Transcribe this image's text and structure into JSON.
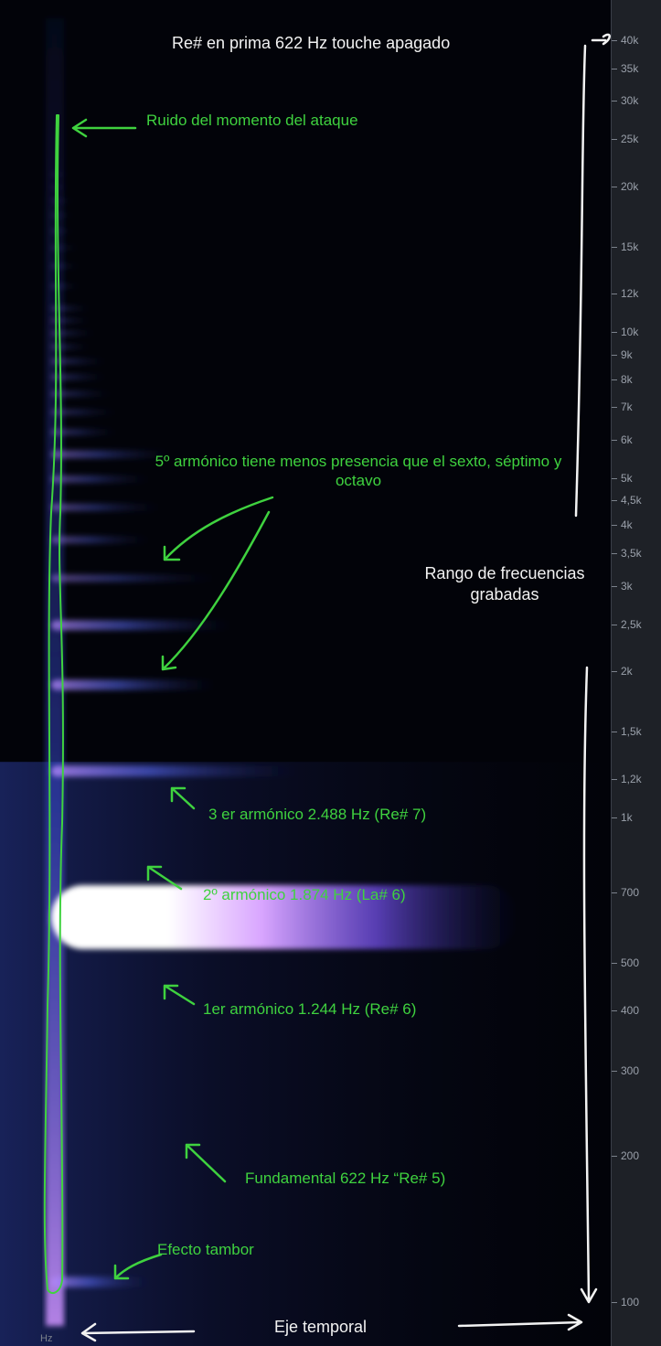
{
  "chart_data": {
    "type": "spectrogram",
    "title": "Re# en prima 622 Hz touche apagado",
    "xlabel": "Eje temporal",
    "ylabel": "",
    "yscale": "log",
    "yunit": "Hz",
    "ylim": [
      70,
      45000
    ],
    "yticks": [
      "100",
      "200",
      "300",
      "400",
      "500",
      "700",
      "1k",
      "1,2k",
      "1,5k",
      "2k",
      "2,5k",
      "3k",
      "3,5k",
      "4k",
      "4,5k",
      "5k",
      "6k",
      "7k",
      "8k",
      "9k",
      "10k",
      "12k",
      "15k",
      "20k",
      "25k",
      "30k",
      "35k",
      "40k"
    ],
    "colors": {
      "annotation": "#3fd23f",
      "text": "#f2f2f2",
      "background": "#020309"
    },
    "annotations": [
      "Ruido del momento del ataque",
      "5º armónico tiene menos presencia que el sexto, séptimo y octavo",
      "3 er armónico 2.488 Hz (Re# 7)",
      "2º armónico 1.874 Hz (La# 6)",
      "1er armónico 1.244 Hz (Re# 6)",
      "Fundamental 622 Hz “Re# 5)",
      "Efecto tambor",
      "Rango de frecuencias grabadas"
    ],
    "partials": [
      {
        "freq": 110,
        "strength": 0.75,
        "decay": 0.18
      },
      {
        "freq": 622,
        "strength": 1.0,
        "decay": 0.85
      },
      {
        "freq": 1244,
        "strength": 0.8,
        "decay": 0.45
      },
      {
        "freq": 1874,
        "strength": 0.75,
        "decay": 0.3
      },
      {
        "freq": 2488,
        "strength": 0.7,
        "decay": 0.33
      },
      {
        "freq": 3110,
        "strength": 0.45,
        "decay": 0.3
      },
      {
        "freq": 3732,
        "strength": 0.45,
        "decay": 0.18
      },
      {
        "freq": 4354,
        "strength": 0.45,
        "decay": 0.2
      },
      {
        "freq": 4976,
        "strength": 0.45,
        "decay": 0.18
      },
      {
        "freq": 5598,
        "strength": 0.5,
        "decay": 0.22
      },
      {
        "freq": 6220,
        "strength": 0.35,
        "decay": 0.12
      },
      {
        "freq": 6842,
        "strength": 0.3,
        "decay": 0.12
      },
      {
        "freq": 7464,
        "strength": 0.3,
        "decay": 0.11
      },
      {
        "freq": 8086,
        "strength": 0.3,
        "decay": 0.1
      },
      {
        "freq": 8708,
        "strength": 0.3,
        "decay": 0.1
      },
      {
        "freq": 9330,
        "strength": 0.25,
        "decay": 0.07
      },
      {
        "freq": 9952,
        "strength": 0.25,
        "decay": 0.08
      },
      {
        "freq": 10574,
        "strength": 0.25,
        "decay": 0.07
      },
      {
        "freq": 11196,
        "strength": 0.25,
        "decay": 0.07
      },
      {
        "freq": 12440,
        "strength": 0.2,
        "decay": 0.05
      },
      {
        "freq": 13684,
        "strength": 0.18,
        "decay": 0.05
      },
      {
        "freq": 14928,
        "strength": 0.15,
        "decay": 0.05
      },
      {
        "freq": 16172,
        "strength": 0.15,
        "decay": 0.04
      },
      {
        "freq": 17416,
        "strength": 0.12,
        "decay": 0.04
      },
      {
        "freq": 18660,
        "strength": 0.12,
        "decay": 0.04
      },
      {
        "freq": 19904,
        "strength": 0.1,
        "decay": 0.03
      },
      {
        "freq": 21148,
        "strength": 0.1,
        "decay": 0.03
      }
    ]
  }
}
